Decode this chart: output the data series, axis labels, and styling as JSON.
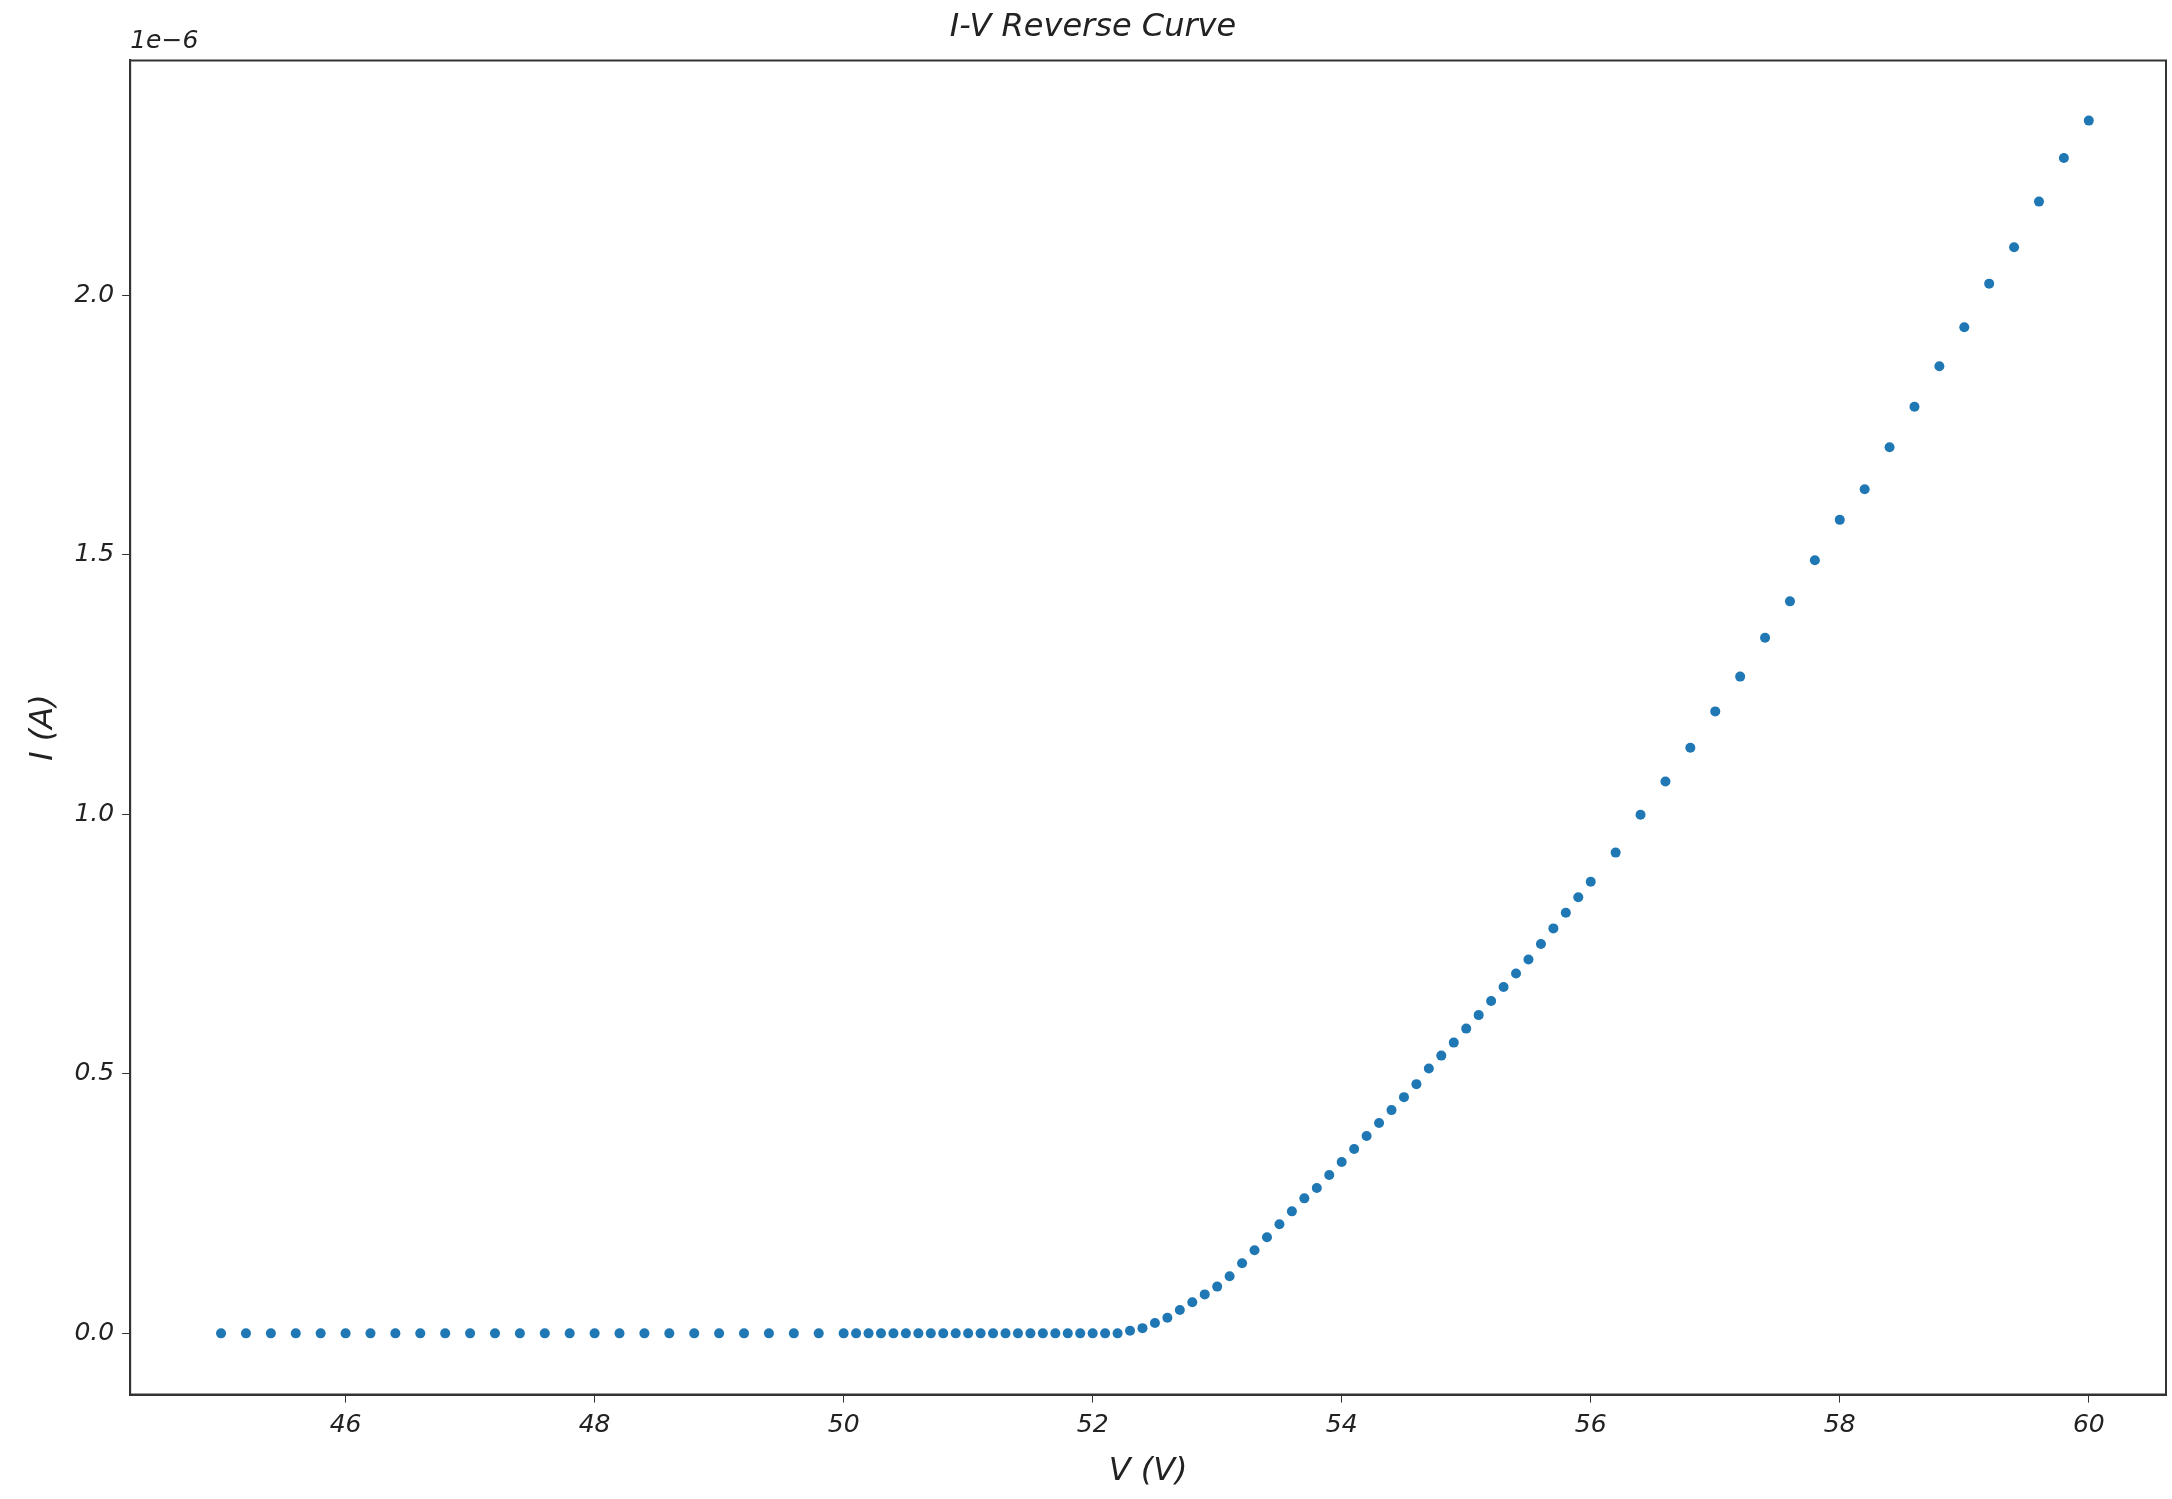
{
  "chart_data": {
    "type": "scatter",
    "title": "I-V Reverse Curve",
    "xlabel": "V (V)",
    "ylabel": "I (A)",
    "annotations": [
      "1e−6"
    ],
    "x": [
      45,
      45.2,
      45.4,
      45.6,
      45.8,
      46,
      46.2,
      46.4,
      46.6,
      46.8,
      47,
      47.2,
      47.4,
      47.6,
      47.8,
      48,
      48.2,
      48.4,
      48.6,
      48.8,
      49,
      49.2,
      49.4,
      49.6,
      49.8,
      50,
      50.1,
      50.2,
      50.3,
      50.4,
      50.5,
      50.6,
      50.7,
      50.8,
      50.9,
      51,
      51.1,
      51.2,
      51.3,
      51.4,
      51.5,
      51.6,
      51.7,
      51.8,
      51.9,
      52,
      52.1,
      52.2,
      52.3,
      52.4,
      52.5,
      52.6,
      52.7,
      52.8,
      52.9,
      53,
      53.1,
      53.2,
      53.3,
      53.4,
      53.5,
      53.6,
      53.7,
      53.8,
      53.9,
      54,
      54.1,
      54.2,
      54.3,
      54.4,
      54.5,
      54.6,
      54.7,
      54.8,
      54.9,
      55,
      55.1,
      55.2,
      55.3,
      55.4,
      55.5,
      55.6,
      55.7,
      55.8,
      55.9,
      56,
      56.2,
      56.4,
      56.6,
      56.8,
      57,
      57.2,
      57.4,
      57.6,
      57.8,
      58,
      58.2,
      58.4,
      58.6,
      58.8,
      59,
      59.2,
      59.4,
      59.6,
      59.8,
      60
    ],
    "series": [
      {
        "color": "#1f77b4",
        "values": [
          0,
          0,
          0,
          0,
          0,
          0,
          0,
          0,
          0,
          0,
          0,
          0,
          0,
          0,
          0,
          0,
          0,
          0,
          0,
          0,
          0,
          0,
          0,
          0,
          0,
          0,
          0,
          0,
          0,
          0,
          0,
          0,
          0,
          0,
          0,
          0,
          0,
          0,
          0,
          0,
          0,
          0,
          0,
          0,
          0,
          0,
          0,
          0,
          0.005,
          0.01,
          0.02,
          0.03,
          0.045,
          0.06,
          0.075,
          0.09,
          0.11,
          0.135,
          0.16,
          0.185,
          0.21,
          0.235,
          0.26,
          0.28,
          0.305,
          0.33,
          0.355,
          0.38,
          0.405,
          0.43,
          0.455,
          0.48,
          0.51,
          0.535,
          0.56,
          0.587,
          0.613,
          0.64,
          0.667,
          0.693,
          0.72,
          0.75,
          0.78,
          0.81,
          0.84,
          0.87,
          0.926,
          0.999,
          1.063,
          1.128,
          1.198,
          1.265,
          1.34,
          1.41,
          1.489,
          1.567,
          1.626,
          1.707,
          1.785,
          1.863,
          1.938,
          2.022,
          2.092,
          2.18,
          2.264,
          2.336
        ]
      }
    ],
    "xlim": [
      44.27,
      60.62
    ],
    "xticks": [
      46,
      48,
      50,
      52,
      54,
      56,
      58,
      60
    ],
    "ylim": [
      -0.118,
      2.452
    ],
    "yticks": [
      {
        "value": 0,
        "label": "0.0"
      },
      {
        "value": 0.5,
        "label": "0.5"
      },
      {
        "value": 1,
        "label": "1.0"
      },
      {
        "value": 1.5,
        "label": "1.5"
      },
      {
        "value": 2,
        "label": "2.0"
      }
    ],
    "grid": false,
    "legend": false,
    "marker": "circle"
  }
}
